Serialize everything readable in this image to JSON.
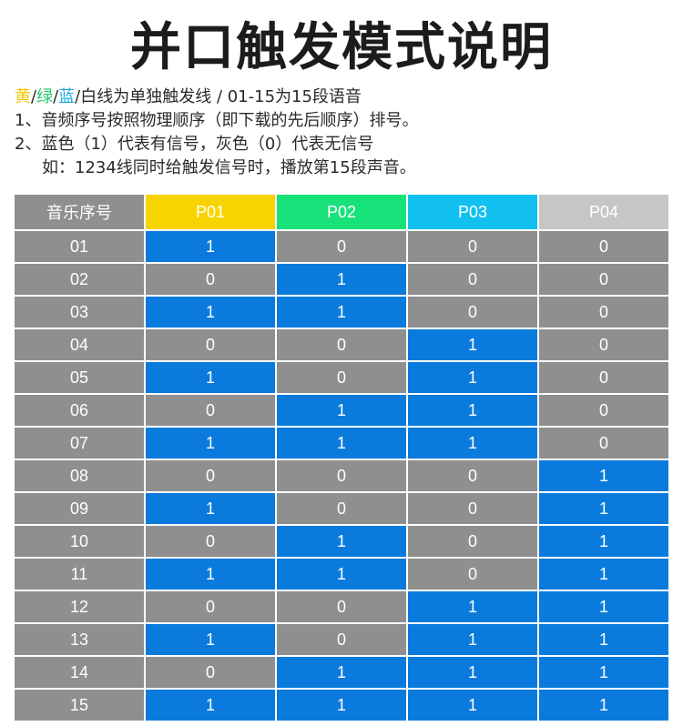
{
  "title": "并口触发模式说明",
  "notes": {
    "line1": {
      "yellow": "黄",
      "sep1": "/",
      "green": "绿",
      "sep2": "/",
      "blue": "蓝",
      "rest": "/白线为单独触发线 / 01-15为15段语音"
    },
    "line2": "1、音频序号按照物理顺序（即下载的先后顺序）排号。",
    "line3": "2、蓝色（1）代表有信号，灰色（0）代表无信号",
    "line4": "如：1234线同时给触发信号时，播放第15段声音。"
  },
  "colors": {
    "p01": "#f7d400",
    "p02": "#18e17a",
    "p03": "#12c0f0",
    "p04": "#c6c6c6",
    "signal_on": "#0a7bdc",
    "signal_off": "#8f8f8f"
  },
  "table": {
    "headers": [
      "音乐序号",
      "P01",
      "P02",
      "P03",
      "P04"
    ],
    "rows": [
      {
        "id": "01",
        "p": [
          "1",
          "0",
          "0",
          "0"
        ]
      },
      {
        "id": "02",
        "p": [
          "0",
          "1",
          "0",
          "0"
        ]
      },
      {
        "id": "03",
        "p": [
          "1",
          "1",
          "0",
          "0"
        ]
      },
      {
        "id": "04",
        "p": [
          "0",
          "0",
          "1",
          "0"
        ]
      },
      {
        "id": "05",
        "p": [
          "1",
          "0",
          "1",
          "0"
        ]
      },
      {
        "id": "06",
        "p": [
          "0",
          "1",
          "1",
          "0"
        ]
      },
      {
        "id": "07",
        "p": [
          "1",
          "1",
          "1",
          "0"
        ]
      },
      {
        "id": "08",
        "p": [
          "0",
          "0",
          "0",
          "1"
        ]
      },
      {
        "id": "09",
        "p": [
          "1",
          "0",
          "0",
          "1"
        ]
      },
      {
        "id": "10",
        "p": [
          "0",
          "1",
          "0",
          "1"
        ]
      },
      {
        "id": "11",
        "p": [
          "1",
          "1",
          "0",
          "1"
        ]
      },
      {
        "id": "12",
        "p": [
          "0",
          "0",
          "1",
          "1"
        ]
      },
      {
        "id": "13",
        "p": [
          "1",
          "0",
          "1",
          "1"
        ]
      },
      {
        "id": "14",
        "p": [
          "0",
          "1",
          "1",
          "1"
        ]
      },
      {
        "id": "15",
        "p": [
          "1",
          "1",
          "1",
          "1"
        ]
      }
    ]
  }
}
